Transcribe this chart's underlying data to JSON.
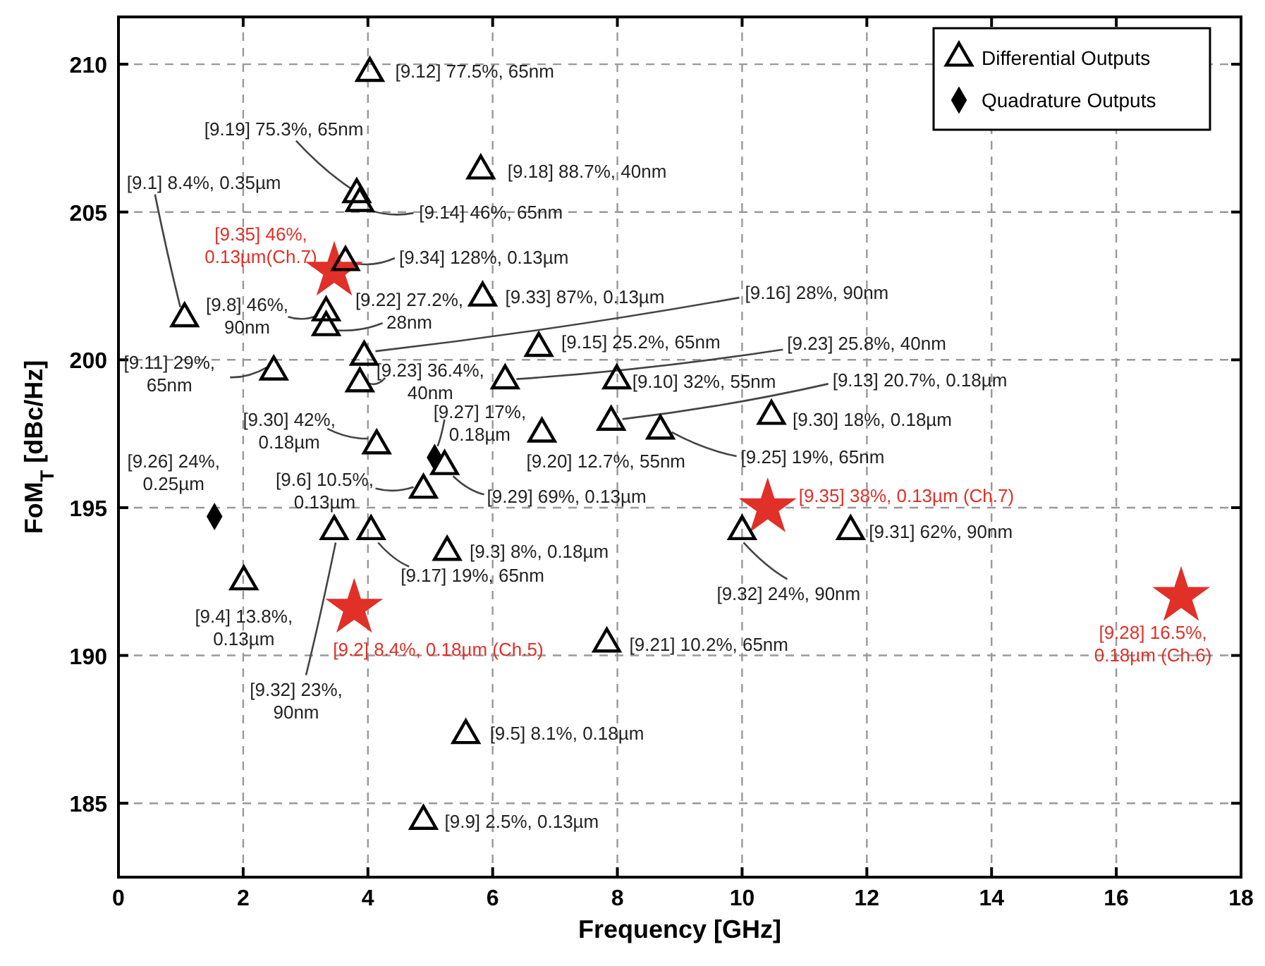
{
  "chart_data": {
    "type": "scatter",
    "xlabel": "Frequency [GHz]",
    "ylabel": "FoM$_{T}$ [dBc/Hz]",
    "xlim": [
      0,
      18
    ],
    "xticks": [
      0,
      2,
      4,
      6,
      8,
      10,
      12,
      14,
      16,
      18
    ],
    "ylim": [
      182.5,
      211.6
    ],
    "yticks": [
      185,
      190,
      195,
      200,
      205,
      210
    ],
    "grid": true,
    "legend": "top right",
    "series": [
      {
        "name": "Differential Outputs",
        "color": "#000000",
        "marker": "triangle",
        "x": [
          4.03,
          3.82,
          3.87,
          5.81,
          1.06,
          3.64,
          3.33,
          3.33,
          5.84,
          3.94,
          2.49,
          3.87,
          6.74,
          6.2,
          7.99,
          7.9,
          6.79,
          8.69,
          10.47,
          4.14,
          5.23,
          4.89,
          3.46,
          4.05,
          5.27,
          2.01,
          7.83,
          5.57,
          4.89,
          10.0,
          11.74
        ],
        "values": [
          209.7,
          205.6,
          205.3,
          206.4,
          201.4,
          203.3,
          201.6,
          201.1,
          202.1,
          200.1,
          199.6,
          199.2,
          200.4,
          199.3,
          199.3,
          197.9,
          197.5,
          197.6,
          198.1,
          197.1,
          196.4,
          195.6,
          194.2,
          194.2,
          193.5,
          192.5,
          190.4,
          187.3,
          184.4,
          194.2,
          194.2
        ]
      },
      {
        "name": "Quadrature Outputs",
        "color": "#000000",
        "marker": "diamond",
        "x": [
          5.07,
          1.54
        ],
        "values": [
          196.7,
          194.7
        ]
      },
      {
        "color": "#e03028",
        "marker": "star",
        "x": [
          3.46,
          3.78,
          10.41,
          17.04
        ],
        "values": [
          203.0,
          191.6,
          195.0,
          192.0
        ]
      }
    ],
    "annotations": [
      {
        "text": "[9.12] 77.5%, 65nm",
        "x": 4.03,
        "y": 209.7
      },
      {
        "text": "[9.19] 75.3%, 65nm",
        "x": 3.82,
        "y": 205.6
      },
      {
        "text": "[9.14] 46%, 65nm",
        "x": 3.87,
        "y": 205.3
      },
      {
        "text": "[9.18] 88.7%, 40nm",
        "x": 5.81,
        "y": 206.4
      },
      {
        "text": "[9.1] 8.4%, 0.35µm",
        "x": 1.06,
        "y": 201.4
      },
      {
        "text": "[9.35] 46%,\n0.13µm(Ch.7)",
        "x": 3.46,
        "y": 203.0
      },
      {
        "text": "[9.34] 128%, 0.13µm",
        "x": 3.64,
        "y": 203.3
      },
      {
        "text": "[9.8] 46%,\n90nm",
        "x": 3.33,
        "y": 201.6
      },
      {
        "text": "[9.22] 27.2%,\n28nm",
        "x": 3.33,
        "y": 201.1
      },
      {
        "text": "[9.33] 87%, 0.13µm",
        "x": 5.84,
        "y": 202.1
      },
      {
        "text": "[9.16] 28%, 90nm",
        "x": 3.94,
        "y": 200.1
      },
      {
        "text": "[9.11] 29%,\n65nm",
        "x": 2.49,
        "y": 199.6
      },
      {
        "text": "[9.23] 36.4%,\n40nm",
        "x": 3.87,
        "y": 199.2
      },
      {
        "text": "[9.15] 25.2%, 65nm",
        "x": 6.74,
        "y": 200.4
      },
      {
        "text": "[9.23] 25.8%, 40nm",
        "x": 6.2,
        "y": 199.3
      },
      {
        "text": "[9.10] 32%, 55nm",
        "x": 7.99,
        "y": 199.3
      },
      {
        "text": "[9.13] 20.7%, 0.18µm",
        "x": 7.9,
        "y": 197.9
      },
      {
        "text": "[9.20] 12.7%, 55nm",
        "x": 6.79,
        "y": 197.5
      },
      {
        "text": "[9.25] 19%, 65nm",
        "x": 8.69,
        "y": 197.6
      },
      {
        "text": "[9.30] 18%, 0.18µm",
        "x": 10.47,
        "y": 198.1
      },
      {
        "text": "[9.30] 42%,\n0.18µm",
        "x": 4.14,
        "y": 197.1
      },
      {
        "text": "[9.27] 17%,\n0.18µm",
        "x": 5.07,
        "y": 196.7
      },
      {
        "text": "[9.29] 69%, 0.13µm",
        "x": 5.23,
        "y": 196.4
      },
      {
        "text": "[9.6] 10.5%,\n0.13µm",
        "x": 4.89,
        "y": 195.6
      },
      {
        "text": "[9.26] 24%,\n0.25µm",
        "x": 1.54,
        "y": 194.7
      },
      {
        "text": "[9.32] 23%,\n90nm",
        "x": 3.46,
        "y": 194.2
      },
      {
        "text": "[9.17] 19%, 65nm",
        "x": 4.05,
        "y": 194.2
      },
      {
        "text": "[9.3] 8%, 0.18µm",
        "x": 5.27,
        "y": 193.5
      },
      {
        "text": "[9.4] 13.8%,\n0.13µm",
        "x": 2.01,
        "y": 192.5
      },
      {
        "text": "[9.2] 8.4%, 0.18µm (Ch.5)",
        "x": 3.78,
        "y": 191.6
      },
      {
        "text": "[9.21] 10.2%, 65nm",
        "x": 7.83,
        "y": 190.4
      },
      {
        "text": "[9.5] 8.1%, 0.18µm",
        "x": 5.57,
        "y": 187.3
      },
      {
        "text": "[9.9] 2.5%, 0.13µm",
        "x": 4.89,
        "y": 184.4
      },
      {
        "text": "[9.32] 24%, 90nm",
        "x": 10.0,
        "y": 194.2
      },
      {
        "text": "[9.31] 62%, 90nm",
        "x": 11.74,
        "y": 194.2
      },
      {
        "text": "[9.35] 38%, 0.13µm (Ch.7)",
        "x": 10.41,
        "y": 195.0
      },
      {
        "text": "[9.28] 16.5%,\n0.18µm (Ch.6)",
        "x": 17.04,
        "y": 192.0
      }
    ]
  }
}
